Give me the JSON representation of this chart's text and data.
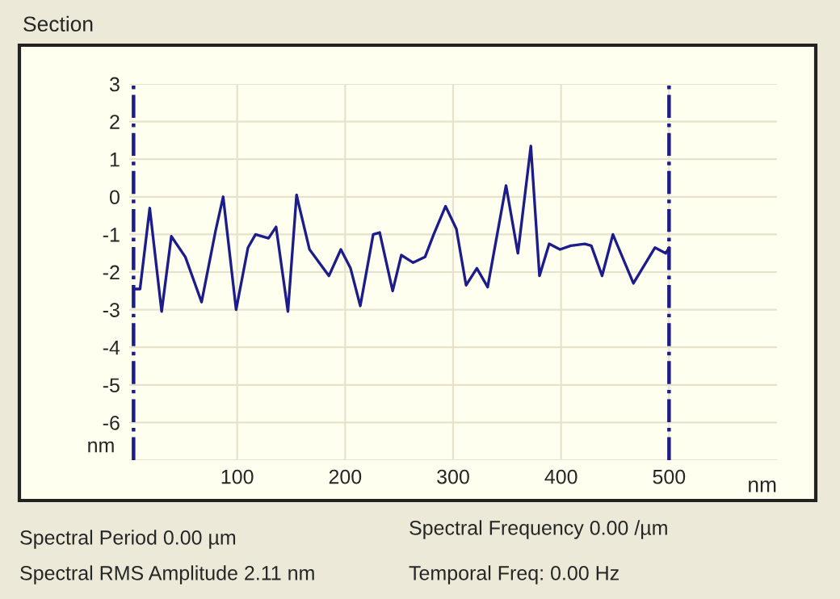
{
  "chart_data": {
    "type": "line",
    "title": "Section",
    "xlabel": "nm",
    "ylabel": "nm",
    "x": [
      4,
      10,
      19,
      30,
      39,
      52,
      67,
      80,
      87,
      99,
      110,
      117,
      129,
      136,
      147,
      155,
      157,
      167,
      185,
      196,
      205,
      214,
      226,
      232,
      244,
      252,
      263,
      274,
      282,
      293,
      303,
      312,
      322,
      332,
      349,
      360,
      372,
      380,
      389,
      399,
      409,
      422,
      428,
      438,
      448,
      467,
      487,
      497,
      500
    ],
    "series": [
      {
        "color": "#1c1c8a",
        "values": [
          -2.45,
          -2.45,
          -0.3,
          -3.05,
          -1.05,
          -1.6,
          -2.8,
          -0.9,
          0.0,
          -3.0,
          -1.35,
          -1.0,
          -1.1,
          -0.8,
          -3.05,
          0.05,
          -0.2,
          -1.4,
          -2.1,
          -1.4,
          -1.9,
          -2.9,
          -1.0,
          -0.95,
          -2.5,
          -1.55,
          -1.75,
          -1.6,
          -1.0,
          -0.25,
          -0.85,
          -2.35,
          -1.9,
          -2.4,
          0.3,
          -1.5,
          1.35,
          -2.1,
          -1.25,
          -1.4,
          -1.3,
          -1.25,
          -1.3,
          -2.1,
          -1.0,
          -2.3,
          -1.35,
          -1.5,
          -1.35
        ]
      }
    ],
    "xlim": [
      0,
      600
    ],
    "ylim": [
      -7,
      3
    ],
    "xticks": [
      100,
      200,
      300,
      400,
      500
    ],
    "yticks": [
      {
        "value": -7,
        "label": null
      },
      -6,
      -5,
      -4,
      -3,
      -2,
      -1,
      0,
      1,
      2,
      3
    ],
    "grid": true,
    "marker": "none",
    "line_style": "solid",
    "ref_lines": [
      {
        "axis": "x",
        "value": 4,
        "color": "#1c1c8a",
        "line_style": "dashdot"
      },
      {
        "axis": "x",
        "value": 500,
        "color": "#1c1c8a",
        "line_style": "dashdot"
      }
    ],
    "annotations": [
      "Spectral Period 0.00 µm",
      "Spectral Frequency 0.00 /µm",
      "Spectral RMS Amplitude 2.11 nm",
      "Temporal Freq: 0.00 Hz"
    ]
  }
}
